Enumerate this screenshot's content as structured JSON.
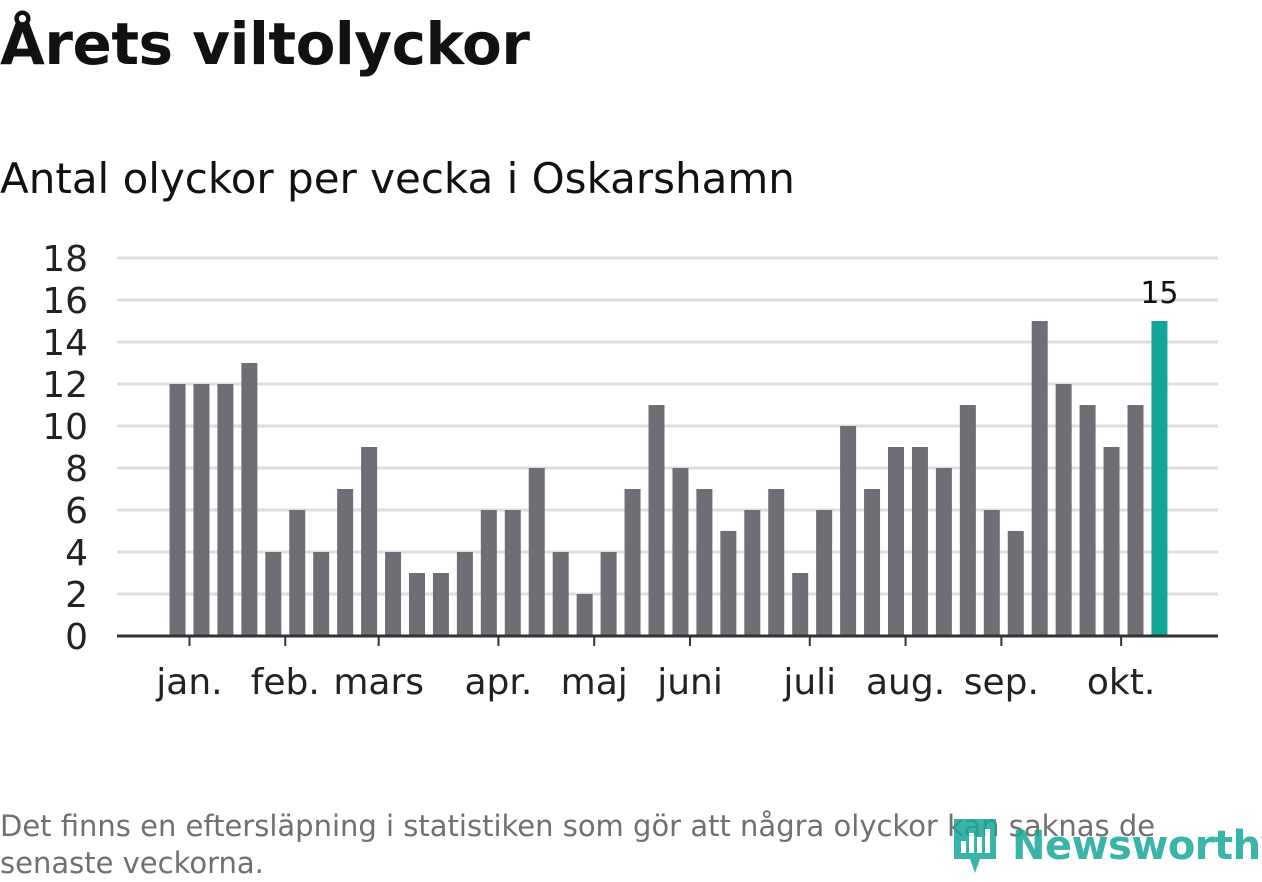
{
  "header": {
    "title": "Årets viltolyckor",
    "subtitle": "Antal olyckor per vecka i Oskarshamn"
  },
  "footer": {
    "note": "Det finns en eftersläpning i statistiken som gör att några olyckor kan saknas de senaste veckorna.",
    "brand": "Newsworthy"
  },
  "colors": {
    "bar": "#6f6e74",
    "highlight": "#12a59a",
    "grid": "#dedede",
    "axis": "#333333",
    "brand": "#16a89a"
  },
  "chart_data": {
    "type": "bar",
    "title": "Antal olyckor per vecka i Oskarshamn",
    "xlabel": "",
    "ylabel": "",
    "ylim": [
      0,
      18
    ],
    "yticks": [
      0,
      2,
      4,
      6,
      8,
      10,
      12,
      14,
      16,
      18
    ],
    "grid": true,
    "values": [
      12,
      12,
      12,
      13,
      4,
      6,
      4,
      7,
      9,
      4,
      3,
      3,
      4,
      6,
      6,
      8,
      4,
      2,
      4,
      7,
      11,
      8,
      7,
      5,
      6,
      7,
      3,
      6,
      10,
      7,
      9,
      9,
      8,
      11,
      6,
      5,
      15,
      12,
      11,
      9,
      11,
      15
    ],
    "highlight_index": 41,
    "highlight_label": "15",
    "month_labels": [
      {
        "label": "jan.",
        "week": 0.5
      },
      {
        "label": "feb.",
        "week": 4.5
      },
      {
        "label": "mars",
        "week": 8.4
      },
      {
        "label": "apr.",
        "week": 13.4
      },
      {
        "label": "maj",
        "week": 17.4
      },
      {
        "label": "juni",
        "week": 21.4
      },
      {
        "label": "juli",
        "week": 26.4
      },
      {
        "label": "aug.",
        "week": 30.4
      },
      {
        "label": "sep.",
        "week": 34.4
      },
      {
        "label": "okt.",
        "week": 39.4
      }
    ]
  }
}
